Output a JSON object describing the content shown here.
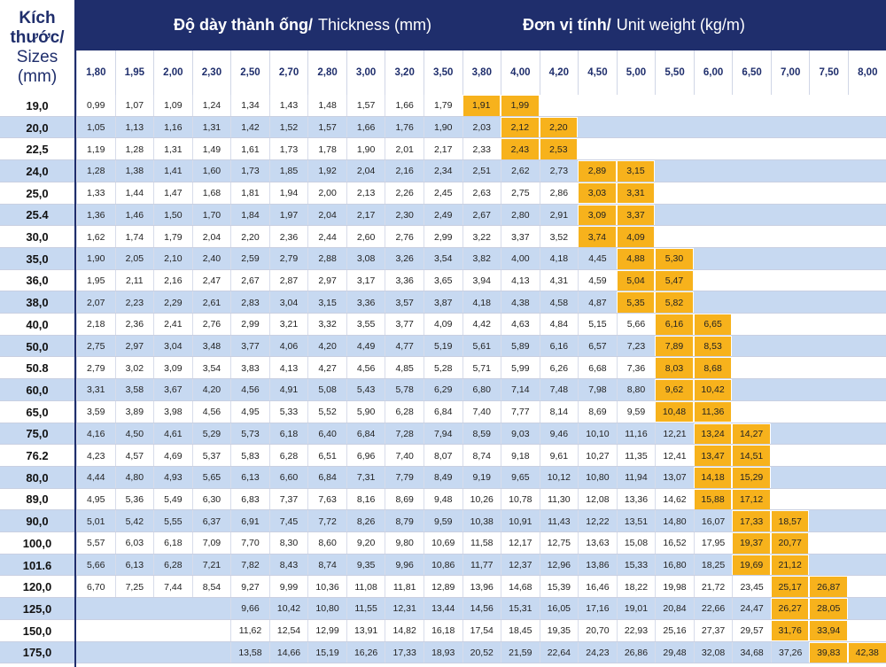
{
  "header": {
    "corner": [
      "Kích",
      "thước/",
      "Sizes",
      "(mm)"
    ],
    "thickness_vi": "Độ dày thành ống/",
    "thickness_en": "Thickness (mm)",
    "weight_vi": "Đơn vị tính/",
    "weight_en": "Unit weight (kg/m)"
  },
  "colors": {
    "header_bg": "#1f2e6c",
    "highlight": "#f7b21c",
    "band": "#c7d9f1",
    "white": "#ffffff"
  },
  "thickness": [
    "1,80",
    "1,95",
    "2,00",
    "2,30",
    "2,50",
    "2,70",
    "2,80",
    "3,00",
    "3,20",
    "3,50",
    "3,80",
    "4,00",
    "4,20",
    "4,50",
    "5,00",
    "5,50",
    "6,00",
    "6,50",
    "7,00",
    "7,50",
    "8,00"
  ],
  "rows": [
    {
      "size": "19,0",
      "start": 0,
      "hl": [
        10,
        11
      ],
      "v": [
        "0,99",
        "1,07",
        "1,09",
        "1,24",
        "1,34",
        "1,43",
        "1,48",
        "1,57",
        "1,66",
        "1,79",
        "1,91",
        "1,99"
      ]
    },
    {
      "size": "20,0",
      "start": 0,
      "hl": [
        11,
        12
      ],
      "v": [
        "1,05",
        "1,13",
        "1,16",
        "1,31",
        "1,42",
        "1,52",
        "1,57",
        "1,66",
        "1,76",
        "1,90",
        "2,03",
        "2,12",
        "2,20"
      ]
    },
    {
      "size": "22,5",
      "start": 0,
      "hl": [
        11,
        12
      ],
      "v": [
        "1,19",
        "1,28",
        "1,31",
        "1,49",
        "1,61",
        "1,73",
        "1,78",
        "1,90",
        "2,01",
        "2,17",
        "2,33",
        "2,43",
        "2,53"
      ]
    },
    {
      "size": "24,0",
      "start": 0,
      "hl": [
        13,
        14
      ],
      "v": [
        "1,28",
        "1,38",
        "1,41",
        "1,60",
        "1,73",
        "1,85",
        "1,92",
        "2,04",
        "2,16",
        "2,34",
        "2,51",
        "2,62",
        "2,73",
        "2,89",
        "3,15"
      ]
    },
    {
      "size": "25,0",
      "start": 0,
      "hl": [
        13,
        14
      ],
      "v": [
        "1,33",
        "1,44",
        "1,47",
        "1,68",
        "1,81",
        "1,94",
        "2,00",
        "2,13",
        "2,26",
        "2,45",
        "2,63",
        "2,75",
        "2,86",
        "3,03",
        "3,31"
      ]
    },
    {
      "size": "25.4",
      "start": 0,
      "hl": [
        13,
        14
      ],
      "v": [
        "1,36",
        "1,46",
        "1,50",
        "1,70",
        "1,84",
        "1,97",
        "2,04",
        "2,17",
        "2,30",
        "2,49",
        "2,67",
        "2,80",
        "2,91",
        "3,09",
        "3,37"
      ]
    },
    {
      "size": "30,0",
      "start": 0,
      "hl": [
        13,
        14
      ],
      "v": [
        "1,62",
        "1,74",
        "1,79",
        "2,04",
        "2,20",
        "2,36",
        "2,44",
        "2,60",
        "2,76",
        "2,99",
        "3,22",
        "3,37",
        "3,52",
        "3,74",
        "4,09"
      ]
    },
    {
      "size": "35,0",
      "start": 0,
      "hl": [
        14,
        15
      ],
      "v": [
        "1,90",
        "2,05",
        "2,10",
        "2,40",
        "2,59",
        "2,79",
        "2,88",
        "3,08",
        "3,26",
        "3,54",
        "3,82",
        "4,00",
        "4,18",
        "4,45",
        "4,88",
        "5,30"
      ]
    },
    {
      "size": "36,0",
      "start": 0,
      "hl": [
        14,
        15
      ],
      "v": [
        "1,95",
        "2,11",
        "2,16",
        "2,47",
        "2,67",
        "2,87",
        "2,97",
        "3,17",
        "3,36",
        "3,65",
        "3,94",
        "4,13",
        "4,31",
        "4,59",
        "5,04",
        "5,47"
      ]
    },
    {
      "size": "38,0",
      "start": 0,
      "hl": [
        14,
        15
      ],
      "v": [
        "2,07",
        "2,23",
        "2,29",
        "2,61",
        "2,83",
        "3,04",
        "3,15",
        "3,36",
        "3,57",
        "3,87",
        "4,18",
        "4,38",
        "4,58",
        "4,87",
        "5,35",
        "5,82"
      ]
    },
    {
      "size": "40,0",
      "start": 0,
      "hl": [
        15,
        16
      ],
      "v": [
        "2,18",
        "2,36",
        "2,41",
        "2,76",
        "2,99",
        "3,21",
        "3,32",
        "3,55",
        "3,77",
        "4,09",
        "4,42",
        "4,63",
        "4,84",
        "5,15",
        "5,66",
        "6,16",
        "6,65"
      ]
    },
    {
      "size": "50,0",
      "start": 0,
      "hl": [
        15,
        16
      ],
      "v": [
        "2,75",
        "2,97",
        "3,04",
        "3,48",
        "3,77",
        "4,06",
        "4,20",
        "4,49",
        "4,77",
        "5,19",
        "5,61",
        "5,89",
        "6,16",
        "6,57",
        "7,23",
        "7,89",
        "8,53"
      ]
    },
    {
      "size": "50.8",
      "start": 0,
      "hl": [
        15,
        16
      ],
      "v": [
        "2,79",
        "3,02",
        "3,09",
        "3,54",
        "3,83",
        "4,13",
        "4,27",
        "4,56",
        "4,85",
        "5,28",
        "5,71",
        "5,99",
        "6,26",
        "6,68",
        "7,36",
        "8,03",
        "8,68"
      ]
    },
    {
      "size": "60,0",
      "start": 0,
      "hl": [
        15,
        16
      ],
      "v": [
        "3,31",
        "3,58",
        "3,67",
        "4,20",
        "4,56",
        "4,91",
        "5,08",
        "5,43",
        "5,78",
        "6,29",
        "6,80",
        "7,14",
        "7,48",
        "7,98",
        "8,80",
        "9,62",
        "10,42"
      ]
    },
    {
      "size": "65,0",
      "start": 0,
      "hl": [
        15,
        16
      ],
      "v": [
        "3,59",
        "3,89",
        "3,98",
        "4,56",
        "4,95",
        "5,33",
        "5,52",
        "5,90",
        "6,28",
        "6,84",
        "7,40",
        "7,77",
        "8,14",
        "8,69",
        "9,59",
        "10,48",
        "11,36"
      ]
    },
    {
      "size": "75,0",
      "start": 0,
      "hl": [
        16,
        17
      ],
      "v": [
        "4,16",
        "4,50",
        "4,61",
        "5,29",
        "5,73",
        "6,18",
        "6,40",
        "6,84",
        "7,28",
        "7,94",
        "8,59",
        "9,03",
        "9,46",
        "10,10",
        "11,16",
        "12,21",
        "13,24",
        "14,27"
      ]
    },
    {
      "size": "76.2",
      "start": 0,
      "hl": [
        16,
        17
      ],
      "v": [
        "4,23",
        "4,57",
        "4,69",
        "5,37",
        "5,83",
        "6,28",
        "6,51",
        "6,96",
        "7,40",
        "8,07",
        "8,74",
        "9,18",
        "9,61",
        "10,27",
        "11,35",
        "12,41",
        "13,47",
        "14,51"
      ]
    },
    {
      "size": "80,0",
      "start": 0,
      "hl": [
        16,
        17
      ],
      "v": [
        "4,44",
        "4,80",
        "4,93",
        "5,65",
        "6,13",
        "6,60",
        "6,84",
        "7,31",
        "7,79",
        "8,49",
        "9,19",
        "9,65",
        "10,12",
        "10,80",
        "11,94",
        "13,07",
        "14,18",
        "15,29"
      ]
    },
    {
      "size": "89,0",
      "start": 0,
      "hl": [
        16,
        17
      ],
      "v": [
        "4,95",
        "5,36",
        "5,49",
        "6,30",
        "6,83",
        "7,37",
        "7,63",
        "8,16",
        "8,69",
        "9,48",
        "10,26",
        "10,78",
        "11,30",
        "12,08",
        "13,36",
        "14,62",
        "15,88",
        "17,12"
      ]
    },
    {
      "size": "90,0",
      "start": 0,
      "hl": [
        17,
        18
      ],
      "v": [
        "5,01",
        "5,42",
        "5,55",
        "6,37",
        "6,91",
        "7,45",
        "7,72",
        "8,26",
        "8,79",
        "9,59",
        "10,38",
        "10,91",
        "11,43",
        "12,22",
        "13,51",
        "14,80",
        "16,07",
        "17,33",
        "18,57"
      ]
    },
    {
      "size": "100,0",
      "start": 0,
      "hl": [
        17,
        18
      ],
      "v": [
        "5,57",
        "6,03",
        "6,18",
        "7,09",
        "7,70",
        "8,30",
        "8,60",
        "9,20",
        "9,80",
        "10,69",
        "11,58",
        "12,17",
        "12,75",
        "13,63",
        "15,08",
        "16,52",
        "17,95",
        "19,37",
        "20,77"
      ]
    },
    {
      "size": "101.6",
      "start": 0,
      "hl": [
        17,
        18
      ],
      "v": [
        "5,66",
        "6,13",
        "6,28",
        "7,21",
        "7,82",
        "8,43",
        "8,74",
        "9,35",
        "9,96",
        "10,86",
        "11,77",
        "12,37",
        "12,96",
        "13,86",
        "15,33",
        "16,80",
        "18,25",
        "19,69",
        "21,12"
      ]
    },
    {
      "size": "120,0",
      "start": 0,
      "hl": [
        18,
        19
      ],
      "v": [
        "6,70",
        "7,25",
        "7,44",
        "8,54",
        "9,27",
        "9,99",
        "10,36",
        "11,08",
        "11,81",
        "12,89",
        "13,96",
        "14,68",
        "15,39",
        "16,46",
        "18,22",
        "19,98",
        "21,72",
        "23,45",
        "25,17",
        "26,87"
      ]
    },
    {
      "size": "125,0",
      "start": 4,
      "hl": [
        18,
        19
      ],
      "v": [
        "9,66",
        "10,42",
        "10,80",
        "11,55",
        "12,31",
        "13,44",
        "14,56",
        "15,31",
        "16,05",
        "17,16",
        "19,01",
        "20,84",
        "22,66",
        "24,47",
        "26,27",
        "28,05"
      ]
    },
    {
      "size": "150,0",
      "start": 4,
      "hl": [
        18,
        19
      ],
      "v": [
        "11,62",
        "12,54",
        "12,99",
        "13,91",
        "14,82",
        "16,18",
        "17,54",
        "18,45",
        "19,35",
        "20,70",
        "22,93",
        "25,16",
        "27,37",
        "29,57",
        "31,76",
        "33,94"
      ]
    },
    {
      "size": "175,0",
      "start": 4,
      "hl": [
        19,
        20
      ],
      "v": [
        "13,58",
        "14,66",
        "15,19",
        "16,26",
        "17,33",
        "18,93",
        "20,52",
        "21,59",
        "22,64",
        "24,23",
        "26,86",
        "29,48",
        "32,08",
        "34,68",
        "37,26",
        "39,83",
        "42,38"
      ]
    }
  ]
}
